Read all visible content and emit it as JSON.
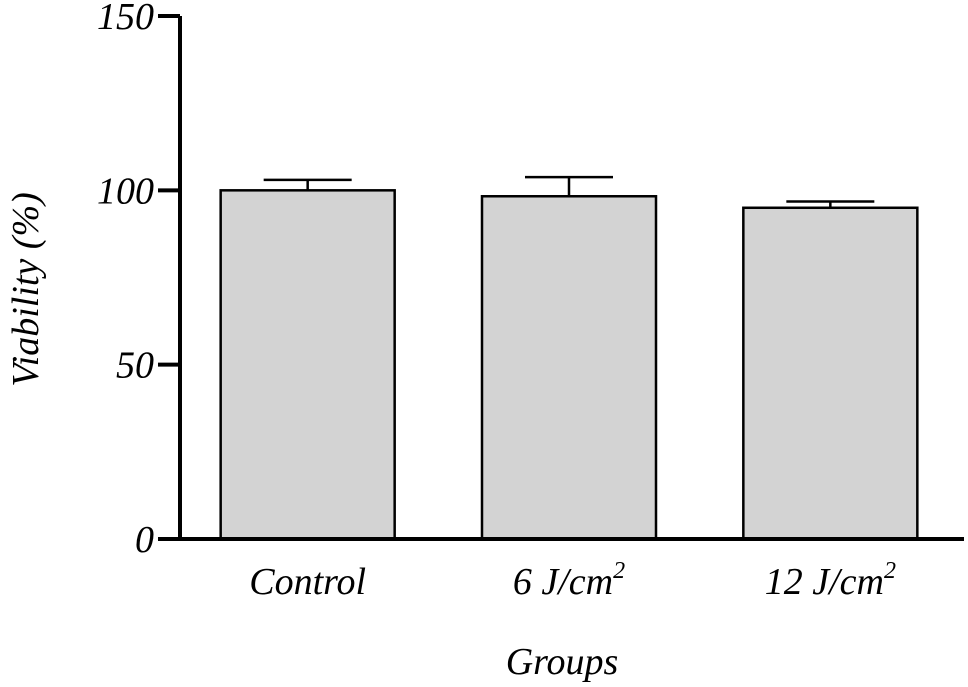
{
  "chart_data": {
    "type": "bar",
    "title": "",
    "xlabel": "Groups",
    "ylabel": "Viability (%)",
    "ylim": [
      0,
      150
    ],
    "yticks": [
      "0",
      "50",
      "100",
      "150"
    ],
    "categories": [
      {
        "label": "Control",
        "base": "Control",
        "sup": ""
      },
      {
        "label": "6 J/cm2",
        "base": "6 J/cm",
        "sup": "2"
      },
      {
        "label": "12 J/cm2",
        "base": "12 J/cm",
        "sup": "2"
      }
    ],
    "values": [
      100,
      98.3,
      95
    ],
    "errors": [
      3,
      5.5,
      1.8
    ],
    "bar_color": "#d3d3d3",
    "edge_color": "#000000",
    "grid": false,
    "legend": "none"
  }
}
